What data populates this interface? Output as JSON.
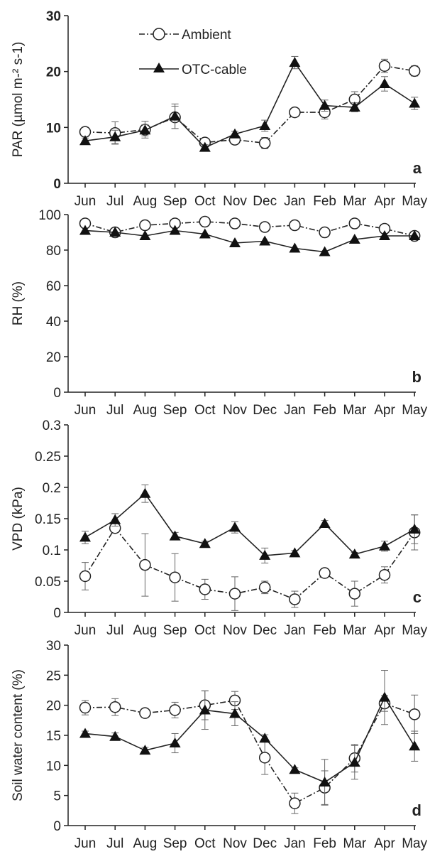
{
  "legend": {
    "ambient_label": "Ambient",
    "otc_label": "OTC-cable"
  },
  "chart_data": [
    {
      "type": "line",
      "panel": "a",
      "ylabel": "PAR (µmol m-² s-1)",
      "ylim": [
        0,
        30
      ],
      "yticks": [
        "0",
        "10",
        "20",
        "30"
      ],
      "categories": [
        "Jun",
        "Jul",
        "Aug",
        "Sep",
        "Oct",
        "Nov",
        "Dec",
        "Jan",
        "Feb",
        "Mar",
        "Apr",
        "May"
      ],
      "series": [
        {
          "name": "Ambient",
          "marker": "open-circle",
          "line": "dash-dot",
          "values": [
            9.2,
            9.0,
            9.6,
            11.8,
            7.3,
            7.8,
            7.2,
            12.7,
            12.7,
            15.0,
            21.0,
            20.1
          ],
          "errors": [
            0.8,
            2.0,
            1.5,
            2.0,
            0.6,
            0.8,
            1.0,
            0.5,
            1.2,
            1.4,
            1.2,
            0.9
          ]
        },
        {
          "name": "OTC-cable",
          "marker": "filled-triangle",
          "line": "solid",
          "values": [
            7.6,
            8.3,
            9.5,
            12.0,
            6.4,
            8.8,
            10.3,
            21.6,
            13.9,
            13.6,
            17.8,
            14.3
          ],
          "errors": [
            0.5,
            1.2,
            1.0,
            2.2,
            0.5,
            0.5,
            1.0,
            1.1,
            1.0,
            0.8,
            1.3,
            1.1
          ]
        }
      ]
    },
    {
      "type": "line",
      "panel": "b",
      "ylabel": "RH (%)",
      "ylim": [
        0,
        100
      ],
      "yticks": [
        "0",
        "20",
        "40",
        "60",
        "80",
        "100"
      ],
      "categories": [
        "Jun",
        "Jul",
        "Aug",
        "Sep",
        "Oct",
        "Nov",
        "Dec",
        "Jan",
        "Feb",
        "Mar",
        "Apr",
        "May"
      ],
      "series": [
        {
          "name": "Ambient",
          "marker": "open-circle",
          "line": "dash-dot",
          "values": [
            95,
            90,
            94,
            95,
            96,
            95,
            93,
            94,
            90,
            95,
            92,
            88
          ],
          "errors": [
            0,
            0,
            0,
            0,
            0,
            0,
            0,
            0,
            0,
            0,
            0,
            0
          ]
        },
        {
          "name": "OTC-cable",
          "marker": "filled-triangle",
          "line": "solid",
          "values": [
            91,
            90,
            88,
            91,
            89,
            84,
            85,
            81,
            79,
            86,
            88,
            88
          ],
          "errors": [
            0,
            0,
            0,
            0,
            0,
            0,
            0,
            0,
            0,
            0,
            0,
            0
          ]
        }
      ]
    },
    {
      "type": "line",
      "panel": "c",
      "ylabel": "VPD (kPa)",
      "ylim": [
        0,
        0.3
      ],
      "yticks": [
        "0",
        "0.05",
        "0.1",
        "0.15",
        "0.2",
        "0.25",
        "0.3"
      ],
      "categories": [
        "Jun",
        "Jul",
        "Aug",
        "Sep",
        "Oct",
        "Nov",
        "Dec",
        "Jan",
        "Feb",
        "Mar",
        "Apr",
        "May"
      ],
      "series": [
        {
          "name": "Ambient",
          "marker": "open-circle",
          "line": "dash-dot",
          "values": [
            0.058,
            0.135,
            0.076,
            0.056,
            0.037,
            0.03,
            0.04,
            0.021,
            0.063,
            0.03,
            0.06,
            0.128
          ],
          "errors": [
            0.022,
            0.005,
            0.05,
            0.038,
            0.016,
            0.027,
            0.01,
            0.013,
            0.005,
            0.02,
            0.013,
            0.028
          ]
        },
        {
          "name": "OTC-cable",
          "marker": "filled-triangle",
          "line": "solid",
          "values": [
            0.12,
            0.148,
            0.19,
            0.122,
            0.11,
            0.136,
            0.091,
            0.095,
            0.142,
            0.093,
            0.106,
            0.133
          ],
          "errors": [
            0.01,
            0.01,
            0.014,
            0.006,
            0.004,
            0.009,
            0.012,
            0.004,
            0.005,
            0.003,
            0.008,
            0.023
          ]
        }
      ]
    },
    {
      "type": "line",
      "panel": "d",
      "ylabel": "Soil water content (%)",
      "ylim": [
        0,
        30
      ],
      "yticks": [
        "0",
        "5",
        "10",
        "15",
        "20",
        "25",
        "30"
      ],
      "categories": [
        "Jun",
        "Jul",
        "Aug",
        "Sep",
        "Oct",
        "Nov",
        "Dec",
        "Jan",
        "Feb",
        "Mar",
        "Apr",
        "May"
      ],
      "series": [
        {
          "name": "Ambient",
          "marker": "open-circle",
          "line": "dash-dot",
          "values": [
            19.6,
            19.7,
            18.7,
            19.2,
            20.0,
            20.8,
            11.3,
            3.7,
            6.3,
            11.2,
            20.3,
            18.5
          ],
          "errors": [
            1.2,
            1.4,
            0.5,
            1.3,
            2.4,
            1.5,
            2.8,
            1.7,
            2.8,
            2.3,
            1.3,
            3.2
          ]
        },
        {
          "name": "OTC-cable",
          "marker": "filled-triangle",
          "line": "solid",
          "values": [
            15.3,
            14.8,
            12.5,
            13.7,
            19.2,
            18.6,
            14.5,
            9.3,
            7.2,
            10.5,
            21.3,
            13.2
          ],
          "errors": [
            0.4,
            0.6,
            0.5,
            1.6,
            3.2,
            2.0,
            0.6,
            0.3,
            3.8,
            2.8,
            4.5,
            2.5
          ]
        }
      ]
    }
  ]
}
